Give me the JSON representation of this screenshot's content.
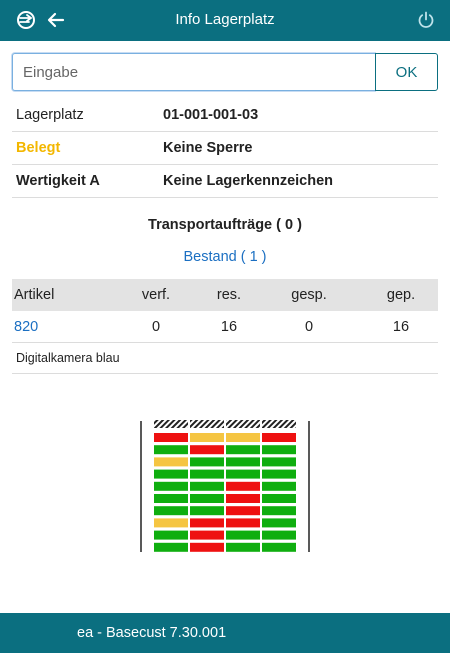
{
  "header": {
    "title": "Info Lagerplatz",
    "logo_icon": "app-logo-icon",
    "back_icon": "arrow-left-icon",
    "power_icon": "power-icon"
  },
  "search": {
    "placeholder": "Eingabe",
    "value": "",
    "ok_label": "OK"
  },
  "info": {
    "lagerplatz_label": "Lagerplatz",
    "lagerplatz_value": "01-001-001-03",
    "status_label": "Belegt",
    "sperre_value": "Keine Sperre",
    "wertigkeit_label": "Wertigkeit A",
    "kennzeichen_value": "Keine Lagerkennzeichen"
  },
  "transport_label": "Transportaufträge ( 0 )",
  "bestand_label": "Bestand ( 1 )",
  "table": {
    "columns": [
      "Artikel",
      "verf.",
      "res.",
      "gesp.",
      "gep."
    ],
    "rows": [
      {
        "artikel": "820",
        "verf": "0",
        "res": "16",
        "gesp": "0",
        "gep": "16",
        "description": "Digitalkamera blau"
      }
    ]
  },
  "rack": {
    "colors": {
      "green": "#0fae0f",
      "red": "#ee1111",
      "yellow": "#f5c542"
    },
    "rows": [
      [
        "red",
        "yellow",
        "yellow",
        "red"
      ],
      [
        "green",
        "red",
        "green",
        "green"
      ],
      [
        "yellow",
        "green",
        "green",
        "green"
      ],
      [
        "green",
        "green",
        "green",
        "green"
      ],
      [
        "green",
        "green",
        "red",
        "green"
      ],
      [
        "green",
        "green",
        "red",
        "green"
      ],
      [
        "green",
        "green",
        "red",
        "green"
      ],
      [
        "yellow",
        "red",
        "red",
        "green"
      ],
      [
        "green",
        "red",
        "green",
        "green"
      ],
      [
        "green",
        "red",
        "green",
        "green"
      ]
    ]
  },
  "footer": {
    "version": "ea - Basecust 7.30.001"
  },
  "colors": {
    "primary": "#0b6f80",
    "link": "#1b6fc2",
    "status_yellow": "#f3b700"
  }
}
